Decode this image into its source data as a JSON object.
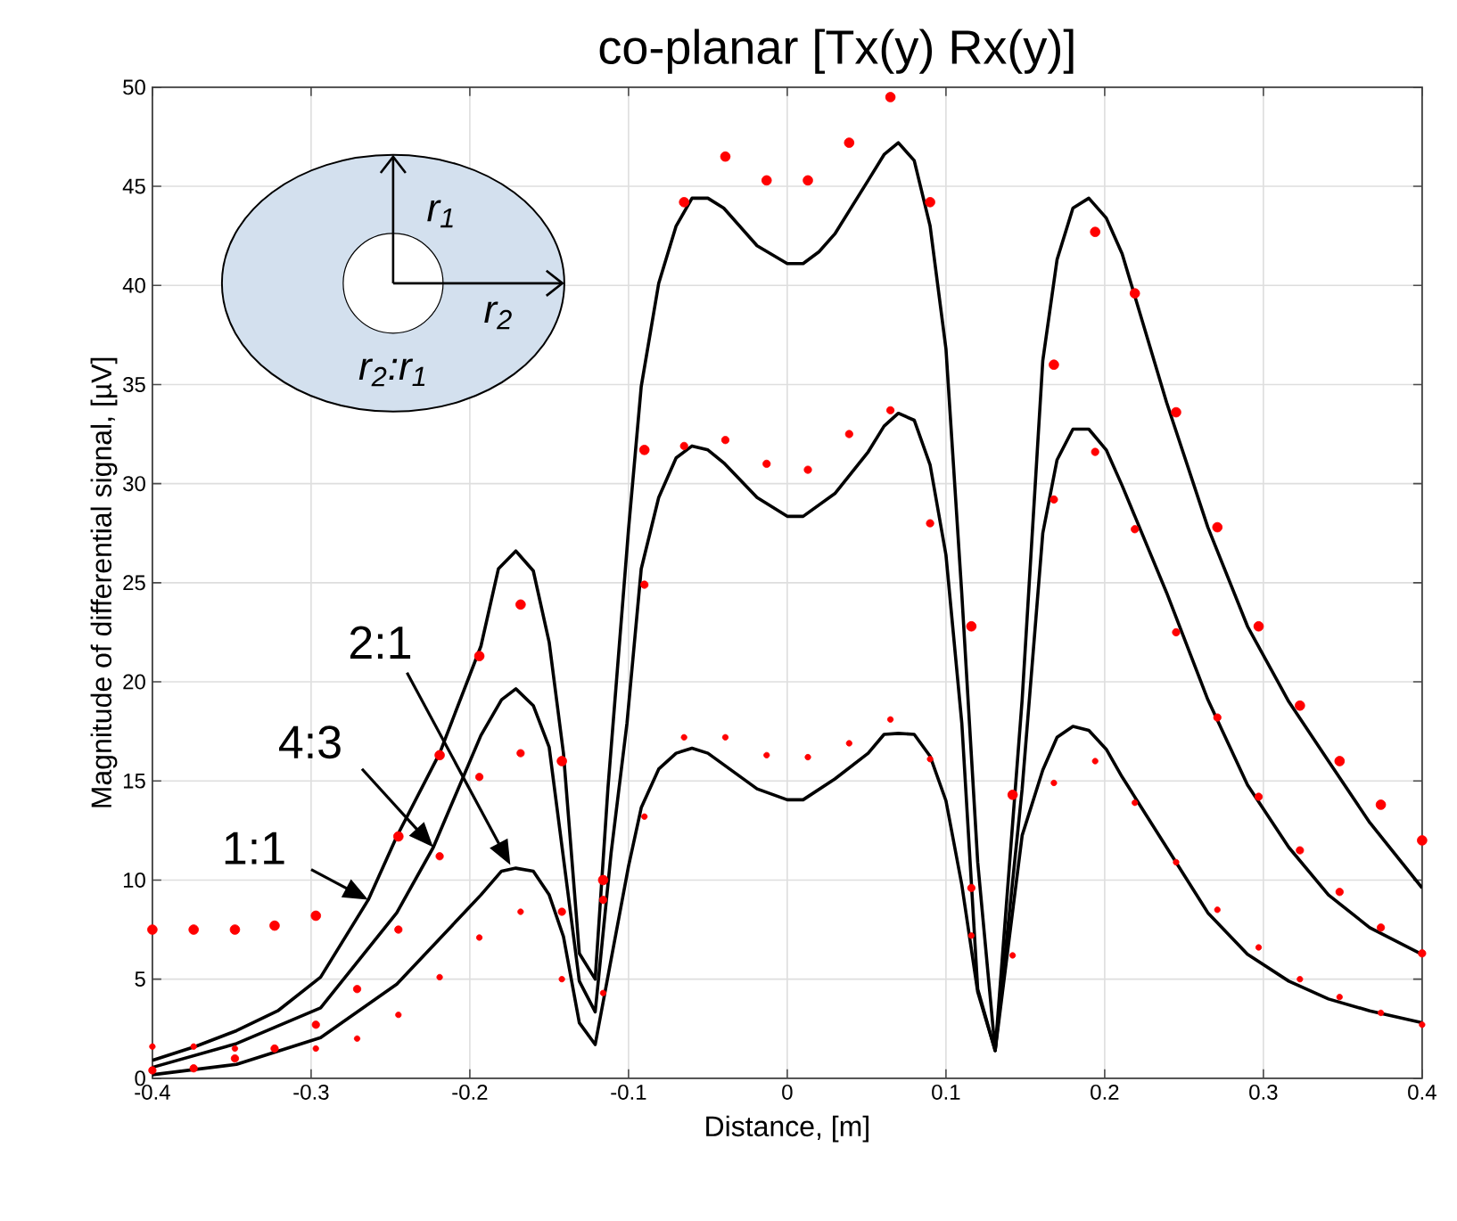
{
  "chart_data": {
    "type": "line",
    "title": "co-planar [Tx(y) Rx(y)]",
    "xlabel": "Distance, [m]",
    "ylabel": "Magnitude of differential signal, [µV]",
    "xlim": [
      -0.4,
      0.4
    ],
    "xticks": [
      -0.4,
      -0.3,
      -0.2,
      -0.1,
      0,
      0.1,
      0.2,
      0.3,
      0.4
    ],
    "ylim": [
      0,
      50
    ],
    "yticks": [
      0,
      5,
      10,
      15,
      20,
      25,
      30,
      35,
      40,
      45,
      50
    ],
    "grid": true,
    "annotations": [
      {
        "text": "1:1",
        "x": -0.264,
        "y": 9.0
      },
      {
        "text": "4:3",
        "x": -0.223,
        "y": 11.65
      },
      "2:1",
      "r$_{1}$",
      "r$_{2}$",
      "r$_{2}$:r$_{1}$"
    ],
    "series": [
      {
        "color": "#000000",
        "marker": "none",
        "line_style": "solid",
        "x": [
          -0.4,
          -0.373,
          -0.347,
          -0.321,
          -0.294,
          -0.264,
          -0.246,
          -0.219,
          -0.193,
          -0.182,
          -0.171,
          -0.16,
          -0.15,
          -0.141,
          -0.131,
          -0.121,
          -0.113,
          -0.1,
          -0.092,
          -0.081,
          -0.07,
          -0.06,
          -0.05,
          -0.04,
          -0.019,
          0.0,
          0.01,
          0.02,
          0.03,
          0.051,
          0.061,
          0.07,
          0.08,
          0.09,
          0.1,
          0.11,
          0.12,
          0.131,
          0.148,
          0.161,
          0.17,
          0.18,
          0.19,
          0.201,
          0.211,
          0.239,
          0.265,
          0.29,
          0.316,
          0.341,
          0.367,
          0.4
        ],
        "values": [
          0.9,
          1.6,
          2.4,
          3.4,
          5.1,
          9.0,
          12.2,
          16.4,
          21.8,
          25.7,
          26.6,
          25.6,
          22.0,
          16.4,
          6.3,
          5.0,
          14.6,
          27.7,
          34.9,
          40.1,
          43.0,
          44.4,
          44.4,
          43.9,
          42.0,
          41.1,
          41.1,
          41.7,
          42.6,
          45.3,
          46.6,
          47.2,
          46.3,
          43.0,
          36.8,
          24.4,
          10.9,
          1.4,
          19.1,
          36.2,
          41.3,
          43.9,
          44.4,
          43.4,
          41.6,
          34.1,
          27.8,
          22.8,
          19.0,
          16.0,
          12.9,
          9.6
        ]
      },
      {
        "color": "#000000",
        "marker": "none",
        "line_style": "solid",
        "x": [
          -0.4,
          -0.347,
          -0.294,
          -0.246,
          -0.223,
          -0.193,
          -0.18,
          -0.171,
          -0.16,
          -0.15,
          -0.131,
          -0.121,
          -0.111,
          -0.101,
          -0.092,
          -0.081,
          -0.07,
          -0.06,
          -0.05,
          -0.04,
          -0.019,
          0.0,
          0.01,
          0.03,
          0.051,
          0.061,
          0.07,
          0.08,
          0.09,
          0.1,
          0.11,
          0.12,
          0.131,
          0.148,
          0.161,
          0.17,
          0.18,
          0.19,
          0.201,
          0.211,
          0.239,
          0.265,
          0.29,
          0.316,
          0.341,
          0.367,
          0.4
        ],
        "values": [
          0.55,
          1.75,
          3.55,
          8.35,
          11.65,
          17.3,
          19.1,
          19.65,
          18.8,
          16.7,
          4.9,
          3.35,
          11.35,
          17.9,
          25.7,
          29.3,
          31.3,
          31.9,
          31.7,
          31.05,
          29.3,
          28.35,
          28.35,
          29.5,
          31.6,
          32.9,
          33.55,
          33.2,
          30.95,
          26.4,
          17.9,
          4.5,
          1.4,
          14.6,
          27.5,
          31.2,
          32.75,
          32.75,
          31.7,
          29.9,
          24.5,
          19.1,
          14.8,
          11.65,
          9.25,
          7.6,
          6.25
        ]
      },
      {
        "color": "#000000",
        "marker": "none",
        "line_style": "solid",
        "x": [
          -0.4,
          -0.347,
          -0.294,
          -0.246,
          -0.193,
          -0.18,
          -0.171,
          -0.16,
          -0.15,
          -0.141,
          -0.131,
          -0.121,
          -0.1,
          -0.092,
          -0.081,
          -0.07,
          -0.06,
          -0.05,
          -0.019,
          0.0,
          0.01,
          0.03,
          0.051,
          0.061,
          0.07,
          0.08,
          0.09,
          0.1,
          0.11,
          0.12,
          0.131,
          0.148,
          0.161,
          0.17,
          0.18,
          0.19,
          0.201,
          0.211,
          0.239,
          0.265,
          0.29,
          0.316,
          0.341,
          0.367,
          0.4
        ],
        "values": [
          0.18,
          0.7,
          2.05,
          4.75,
          9.25,
          10.45,
          10.6,
          10.45,
          9.25,
          7.15,
          2.8,
          1.7,
          10.7,
          13.65,
          15.6,
          16.4,
          16.65,
          16.4,
          14.6,
          14.05,
          14.05,
          15.1,
          16.4,
          17.35,
          17.4,
          17.35,
          16.25,
          14.0,
          9.75,
          4.35,
          1.4,
          12.25,
          15.55,
          17.2,
          17.75,
          17.55,
          16.6,
          15.2,
          11.65,
          8.35,
          6.25,
          4.9,
          4.0,
          3.4,
          2.8
        ]
      },
      {
        "type": "scatter",
        "color": "#ff0000",
        "marker": "circle",
        "x": [
          -0.4,
          -0.374,
          -0.348,
          -0.323,
          -0.297,
          -0.271,
          -0.245,
          -0.219,
          -0.194,
          -0.168,
          -0.142,
          -0.116,
          -0.09,
          -0.065,
          -0.039,
          -0.013,
          0.013,
          0.039,
          0.065,
          0.09,
          0.116,
          0.142,
          0.168,
          0.194,
          0.219,
          0.245,
          0.271,
          0.297,
          0.323,
          0.348,
          0.374,
          0.4
        ],
        "values": [
          7.5,
          7.5,
          7.5,
          7.7,
          8.2,
          null,
          12.2,
          16.3,
          21.3,
          23.9,
          16.0,
          10.0,
          31.7,
          44.2,
          46.5,
          45.3,
          45.3,
          47.2,
          49.5,
          44.2,
          22.8,
          14.3,
          36.0,
          42.7,
          39.6,
          33.6,
          27.8,
          22.8,
          18.8,
          16.0,
          13.8,
          12.0
        ]
      },
      {
        "type": "scatter",
        "color": "#ff0000",
        "marker": "circle",
        "x": [
          -0.4,
          -0.374,
          -0.348,
          -0.323,
          -0.297,
          -0.271,
          -0.245,
          -0.219,
          -0.194,
          -0.168,
          -0.142,
          -0.116,
          -0.09,
          -0.065,
          -0.039,
          -0.013,
          0.013,
          0.039,
          0.065,
          0.09,
          0.116,
          0.142,
          0.168,
          0.194,
          0.219,
          0.245,
          0.271,
          0.297,
          0.323,
          0.348,
          0.374,
          0.4
        ],
        "values": [
          0.4,
          0.5,
          1.0,
          1.5,
          2.7,
          4.5,
          7.5,
          11.2,
          15.2,
          16.4,
          8.4,
          9.0,
          24.9,
          31.9,
          32.2,
          31.0,
          30.7,
          32.5,
          33.7,
          28.0,
          9.6,
          null,
          29.2,
          31.6,
          27.7,
          22.5,
          18.2,
          14.2,
          11.5,
          9.4,
          7.6,
          6.3
        ]
      },
      {
        "type": "scatter",
        "color": "#ff0000",
        "marker": "circle",
        "x": [
          -0.4,
          -0.374,
          -0.348,
          -0.323,
          -0.297,
          -0.271,
          -0.245,
          -0.219,
          -0.194,
          -0.168,
          -0.142,
          -0.116,
          -0.09,
          -0.065,
          -0.039,
          -0.013,
          0.013,
          0.039,
          0.065,
          0.09,
          0.116,
          0.142,
          0.168,
          0.194,
          0.219,
          0.245,
          0.271,
          0.297,
          0.323,
          0.348,
          0.374,
          0.4
        ],
        "values": [
          1.6,
          1.6,
          1.5,
          null,
          1.5,
          2.0,
          3.2,
          5.1,
          7.1,
          8.4,
          5.0,
          4.3,
          13.2,
          17.2,
          17.2,
          16.3,
          16.2,
          16.9,
          18.1,
          16.1,
          7.2,
          6.2,
          14.9,
          16.0,
          13.9,
          10.9,
          8.5,
          6.6,
          5.0,
          4.1,
          3.3,
          2.7
        ]
      }
    ]
  }
}
